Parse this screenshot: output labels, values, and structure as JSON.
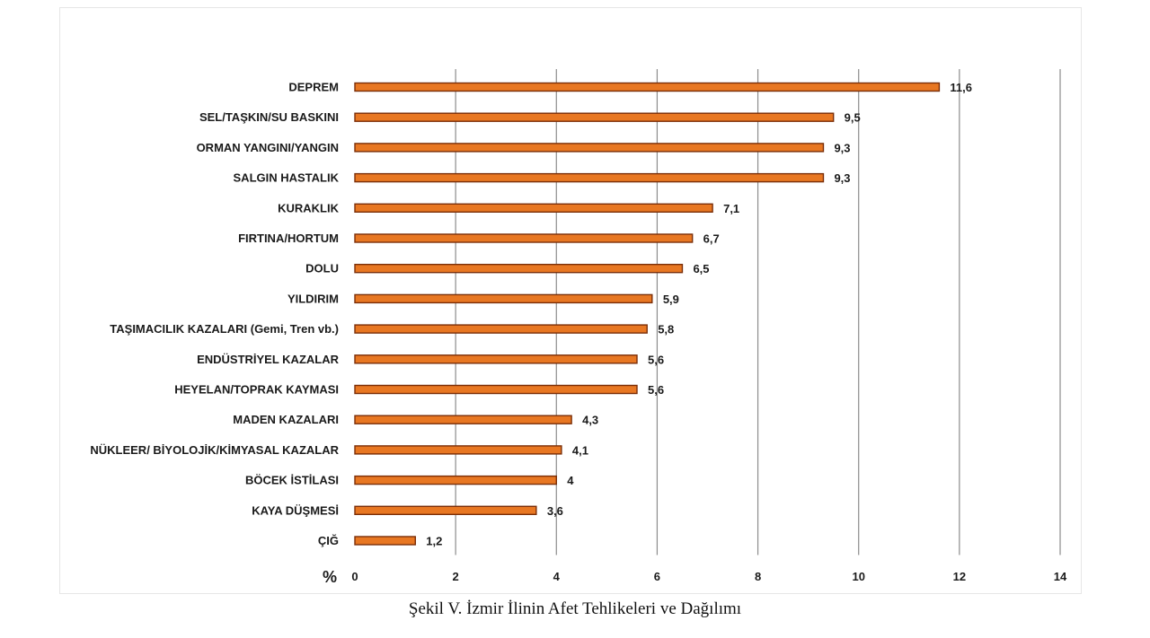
{
  "chart_data": {
    "type": "bar",
    "orientation": "horizontal",
    "title": "",
    "xlabel": "%",
    "ylabel": "",
    "categories": [
      "DEPREM",
      "SEL/TAŞKIN/SU BASKINI",
      "ORMAN YANGINI/YANGIN",
      "SALGIN HASTALIK",
      "KURAKLIK",
      "FIRTINA/HORTUM",
      "DOLU",
      "YILDIRIM",
      "TAŞIMACILIK KAZALARI (Gemi, Tren vb.)",
      "ENDÜSTRİYEL KAZALAR",
      "HEYELAN/TOPRAK KAYMASI",
      "MADEN KAZALARI",
      "NÜKLEER/ BİYOLOJİK/KİMYASAL KAZALAR",
      "BÖCEK İSTİLASI",
      "KAYA DÜŞMESİ",
      "ÇIĞ"
    ],
    "values": [
      11.6,
      9.5,
      9.3,
      9.3,
      7.1,
      6.7,
      6.5,
      5.9,
      5.8,
      5.6,
      5.6,
      4.3,
      4.1,
      4,
      3.6,
      1.2
    ],
    "value_labels": [
      "11,6",
      "9,5",
      "9,3",
      "9,3",
      "7,1",
      "6,7",
      "6,5",
      "5,9",
      "5,8",
      "5,6",
      "5,6",
      "4,3",
      "4,1",
      "4",
      "3,6",
      "1,2"
    ],
    "xlim": [
      0,
      14
    ],
    "ticks": [
      0,
      2,
      4,
      6,
      8,
      10,
      12,
      14
    ],
    "tick_labels": [
      "0",
      "2",
      "4",
      "6",
      "8",
      "10",
      "12",
      "14"
    ],
    "grid": true,
    "legend": "none",
    "bar_color": "#e87722",
    "bar_edge_color": "#7a2e08"
  },
  "caption": "Şekil V. İzmir İlinin Afet Tehlikeleri ve Dağılımı"
}
